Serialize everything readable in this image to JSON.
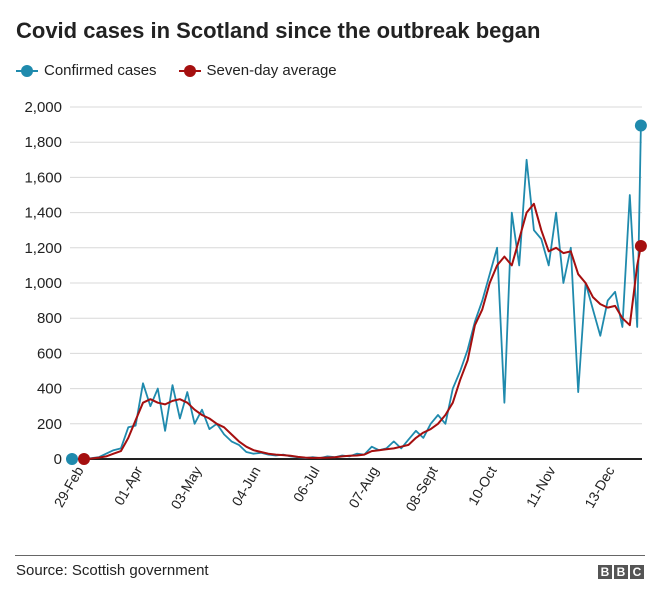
{
  "chart_data": {
    "type": "line",
    "title": "Covid cases in Scotland since the outbreak began",
    "xlabel": "",
    "ylabel": "",
    "ylim": [
      0,
      2000
    ],
    "yticks": [
      "0",
      "200",
      "400",
      "600",
      "800",
      "1,000",
      "1,200",
      "1,400",
      "1,600",
      "1,800",
      "2,000"
    ],
    "ytick_values": [
      0,
      200,
      400,
      600,
      800,
      1000,
      1200,
      1400,
      1600,
      1800,
      2000
    ],
    "xtick_labels": [
      "29-Feb",
      "01-Apr",
      "03-May",
      "04-Jun",
      "06-Jul",
      "07-Aug",
      "08-Sept",
      "10-Oct",
      "11-Nov",
      "13-Dec"
    ],
    "xtick_dates": [
      "2020-02-29",
      "2020-04-01",
      "2020-05-03",
      "2020-06-04",
      "2020-07-06",
      "2020-08-07",
      "2020-09-08",
      "2020-10-10",
      "2020-11-11",
      "2020-12-13"
    ],
    "grid": true,
    "legend": "top-left",
    "x": [
      "2020-02-29",
      "2020-03-04",
      "2020-03-08",
      "2020-03-12",
      "2020-03-16",
      "2020-03-20",
      "2020-03-24",
      "2020-03-28",
      "2020-04-01",
      "2020-04-05",
      "2020-04-09",
      "2020-04-13",
      "2020-04-17",
      "2020-04-21",
      "2020-04-25",
      "2020-04-29",
      "2020-05-03",
      "2020-05-07",
      "2020-05-11",
      "2020-05-15",
      "2020-05-19",
      "2020-05-23",
      "2020-05-27",
      "2020-05-31",
      "2020-06-04",
      "2020-06-08",
      "2020-06-12",
      "2020-06-16",
      "2020-06-20",
      "2020-06-24",
      "2020-06-28",
      "2020-07-02",
      "2020-07-06",
      "2020-07-10",
      "2020-07-14",
      "2020-07-18",
      "2020-07-22",
      "2020-07-26",
      "2020-07-30",
      "2020-08-03",
      "2020-08-07",
      "2020-08-11",
      "2020-08-15",
      "2020-08-19",
      "2020-08-23",
      "2020-08-27",
      "2020-08-31",
      "2020-09-04",
      "2020-09-08",
      "2020-09-12",
      "2020-09-16",
      "2020-09-20",
      "2020-09-24",
      "2020-09-28",
      "2020-10-02",
      "2020-10-06",
      "2020-10-10",
      "2020-10-14",
      "2020-10-18",
      "2020-10-22",
      "2020-10-26",
      "2020-10-30",
      "2020-11-03",
      "2020-11-07",
      "2020-11-11",
      "2020-11-15",
      "2020-11-19",
      "2020-11-23",
      "2020-11-27",
      "2020-12-01",
      "2020-12-05",
      "2020-12-09",
      "2020-12-13",
      "2020-12-17",
      "2020-12-21",
      "2020-12-25",
      "2020-12-27"
    ],
    "series": [
      {
        "name": "Confirmed cases",
        "color": "#1f8aad",
        "values": [
          0,
          5,
          10,
          30,
          50,
          60,
          180,
          190,
          430,
          300,
          400,
          160,
          420,
          230,
          380,
          200,
          280,
          170,
          200,
          140,
          100,
          80,
          40,
          30,
          35,
          25,
          20,
          25,
          15,
          10,
          5,
          10,
          5,
          15,
          10,
          20,
          15,
          30,
          25,
          70,
          50,
          60,
          100,
          60,
          110,
          160,
          120,
          200,
          250,
          200,
          400,
          500,
          620,
          780,
          900,
          1050,
          1200,
          320,
          1400,
          1100,
          1700,
          1300,
          1250,
          1100,
          1400,
          1000,
          1200,
          380,
          1000,
          850,
          700,
          900,
          950,
          750,
          1500,
          750,
          1895
        ]
      },
      {
        "name": "Seven-day average",
        "color": "#a50f0f",
        "values": [
          0,
          3,
          8,
          15,
          30,
          45,
          120,
          220,
          320,
          340,
          320,
          310,
          330,
          340,
          320,
          280,
          250,
          230,
          200,
          180,
          140,
          100,
          70,
          50,
          40,
          30,
          25,
          22,
          18,
          12,
          8,
          6,
          6,
          8,
          10,
          15,
          18,
          20,
          25,
          45,
          50,
          55,
          60,
          70,
          80,
          120,
          150,
          170,
          200,
          250,
          320,
          450,
          560,
          760,
          850,
          1000,
          1100,
          1150,
          1100,
          1250,
          1400,
          1450,
          1300,
          1180,
          1200,
          1170,
          1180,
          1050,
          1000,
          920,
          880,
          860,
          870,
          800,
          760,
          1100,
          1210
        ]
      }
    ]
  },
  "source": "Source: Scottish government",
  "logo": [
    "B",
    "B",
    "C"
  ]
}
